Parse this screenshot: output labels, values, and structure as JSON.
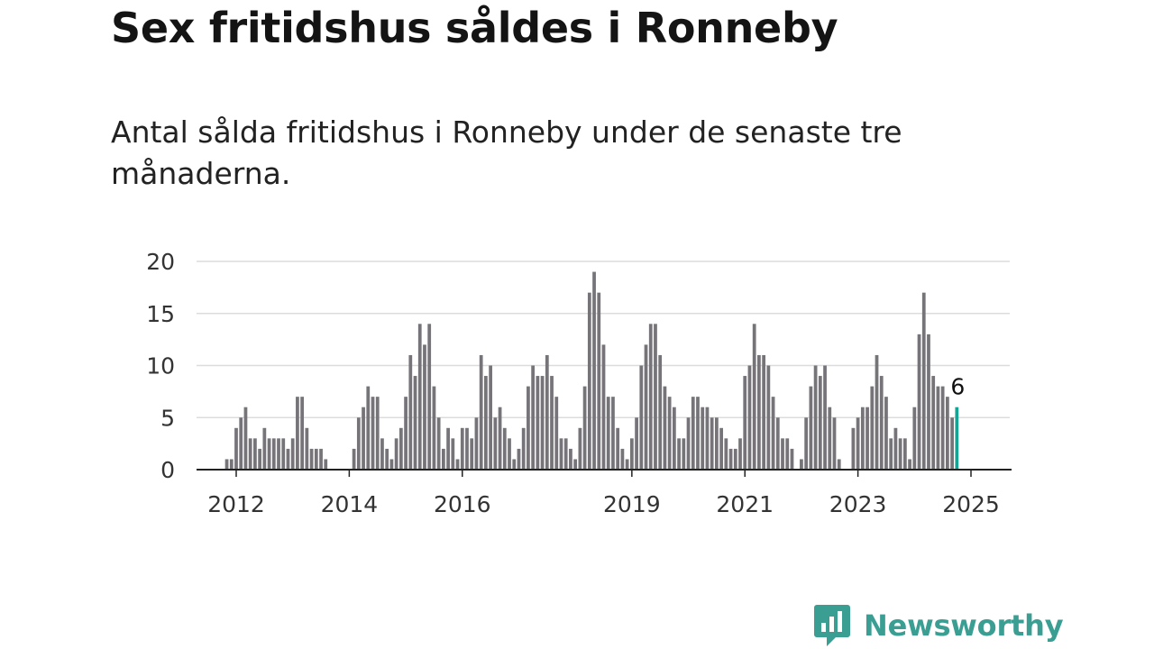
{
  "title": "Sex fritidshus såldes i Ronneby",
  "subtitle": "Antal sålda fritidshus i Ronneby under de senaste tre månaderna.",
  "brand": {
    "name": "Newsworthy",
    "color": "#3a9e93",
    "icon": "newsworthy-logo-icon"
  },
  "colors": {
    "bar": "#767479",
    "highlight": "#16a394",
    "grid": "#dcdcdc"
  },
  "chart_data": {
    "type": "bar",
    "title": "Sex fritidshus såldes i Ronneby",
    "subtitle": "Antal sålda fritidshus i Ronneby under de senaste tre månaderna.",
    "xlabel": "",
    "ylabel": "",
    "ylim": [
      0,
      20
    ],
    "yticks": [
      0,
      5,
      10,
      15,
      20
    ],
    "xticks": [
      "2012",
      "2014",
      "2016",
      "2019",
      "2021",
      "2023",
      "2025"
    ],
    "grid": true,
    "x_start": "2011-01",
    "x_frequency": "monthly",
    "values": [
      0,
      0,
      0,
      0,
      0,
      0,
      0,
      0,
      0,
      0,
      1,
      1,
      4,
      5,
      6,
      3,
      3,
      2,
      4,
      3,
      3,
      3,
      3,
      2,
      3,
      7,
      7,
      4,
      2,
      2,
      2,
      1,
      0,
      0,
      0,
      0,
      0,
      2,
      5,
      6,
      8,
      7,
      7,
      3,
      2,
      1,
      3,
      4,
      7,
      11,
      9,
      14,
      12,
      14,
      8,
      5,
      2,
      4,
      3,
      1,
      4,
      4,
      3,
      5,
      11,
      9,
      10,
      5,
      6,
      4,
      3,
      1,
      2,
      4,
      8,
      10,
      9,
      9,
      11,
      9,
      7,
      3,
      3,
      2,
      1,
      4,
      8,
      17,
      19,
      17,
      12,
      7,
      7,
      4,
      2,
      1,
      3,
      5,
      10,
      12,
      14,
      14,
      11,
      8,
      7,
      6,
      3,
      3,
      5,
      7,
      7,
      6,
      6,
      5,
      5,
      4,
      3,
      2,
      2,
      3,
      9,
      10,
      14,
      11,
      11,
      10,
      7,
      5,
      3,
      3,
      2,
      0,
      1,
      5,
      8,
      10,
      9,
      10,
      6,
      5,
      1,
      0,
      0,
      4,
      5,
      6,
      6,
      8,
      11,
      9,
      7,
      3,
      4,
      3,
      3,
      1,
      6,
      13,
      17,
      13,
      9,
      8,
      8,
      7,
      5,
      6
    ],
    "highlight": {
      "label": "6",
      "value": 6
    }
  }
}
